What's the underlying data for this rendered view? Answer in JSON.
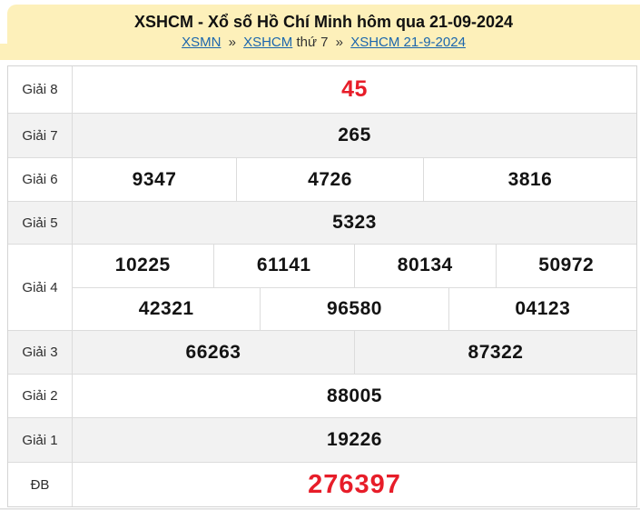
{
  "page": {
    "title": "XSHCM - Xổ số Hồ Chí Minh hôm qua 21-09-2024"
  },
  "breadcrumb": {
    "xsmn": "XSMN",
    "sep": "»",
    "xshcm": "XSHCM",
    "day": "thứ 7",
    "date": "XSHCM 21-9-2024"
  },
  "prizes": [
    {
      "label": "Giải 8",
      "numbers": [
        "45"
      ]
    },
    {
      "label": "Giải 7",
      "numbers": [
        "265"
      ]
    },
    {
      "label": "Giải 6",
      "numbers": [
        "9347",
        "4726",
        "3816"
      ]
    },
    {
      "label": "Giải 5",
      "numbers": [
        "5323"
      ]
    },
    {
      "label": "Giải 4",
      "line1": [
        "10225",
        "61141",
        "80134",
        "50972"
      ],
      "line2": [
        "42321",
        "96580",
        "04123"
      ]
    },
    {
      "label": "Giải 3",
      "numbers": [
        "66263",
        "87322"
      ]
    },
    {
      "label": "Giải 2",
      "numbers": [
        "88005"
      ]
    },
    {
      "label": "Giải 1",
      "numbers": [
        "19226"
      ]
    },
    {
      "label": "ĐB",
      "numbers": [
        "276397"
      ]
    }
  ],
  "colors": {
    "banner_bg": "#fdf0ba",
    "accent_red": "#e71d29",
    "link_blue": "#1b66ad",
    "row_shade": "#f2f2f2",
    "border": "#dcdcdc"
  }
}
